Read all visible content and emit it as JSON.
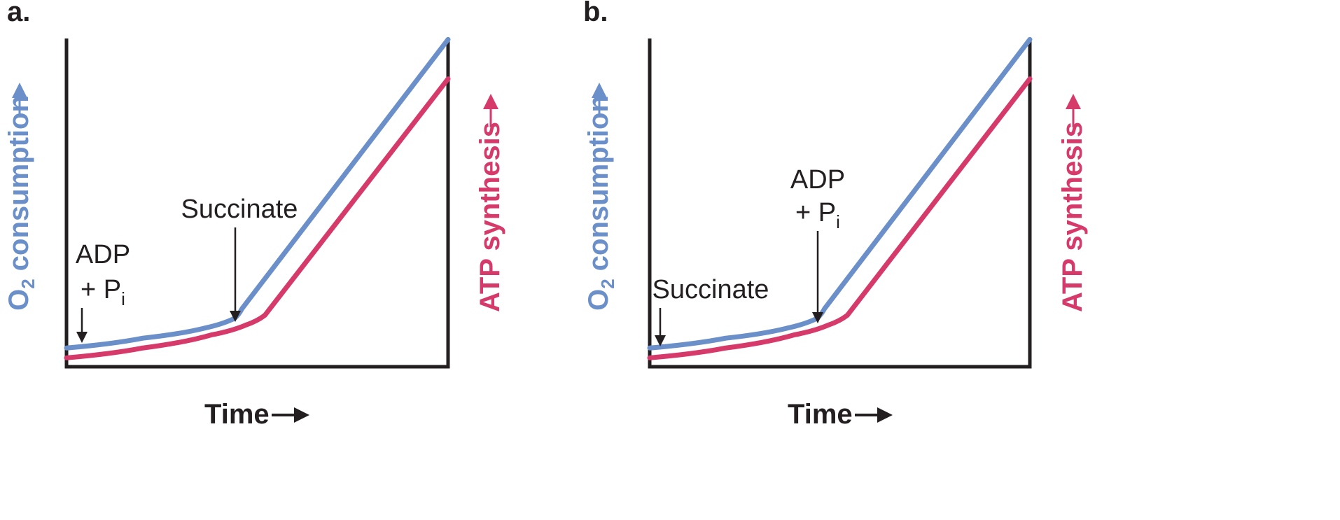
{
  "chart_data": [
    {
      "panel": "a.",
      "type": "line",
      "xlabel": "Time",
      "ylabel_left": {
        "base": "O",
        "sub": "2",
        "rest": " consumption"
      },
      "ylabel_right": "ATP synthesis",
      "grid": false,
      "xlim": [
        0,
        1
      ],
      "ylim": [
        0,
        1
      ],
      "series": [
        {
          "color": "#6a8fc9",
          "x": [
            0,
            0.2,
            0.36,
            0.44,
            0.46,
            1.0
          ],
          "y": [
            0.04,
            0.07,
            0.1,
            0.13,
            0.16,
            0.98
          ]
        },
        {
          "color": "#d63a6a",
          "x": [
            0,
            0.2,
            0.38,
            0.47,
            0.52,
            1.0
          ],
          "y": [
            0.01,
            0.04,
            0.08,
            0.11,
            0.14,
            0.86
          ]
        }
      ],
      "annotations": [
        {
          "lines": [
            {
              "text": "ADP"
            },
            {
              "text": "+ P",
              "sub": "i"
            }
          ],
          "x": 0.04
        },
        {
          "lines": [
            {
              "text": "Succinate"
            }
          ],
          "x": 0.44
        }
      ]
    },
    {
      "panel": "b.",
      "type": "line",
      "xlabel": "Time",
      "ylabel_left": {
        "base": "O",
        "sub": "2",
        "rest": " consumption"
      },
      "ylabel_right": "ATP synthesis",
      "grid": false,
      "xlim": [
        0,
        1
      ],
      "ylim": [
        0,
        1
      ],
      "series": [
        {
          "color": "#6a8fc9",
          "x": [
            0,
            0.2,
            0.36,
            0.44,
            0.46,
            1.0
          ],
          "y": [
            0.04,
            0.07,
            0.1,
            0.13,
            0.16,
            0.98
          ]
        },
        {
          "color": "#d63a6a",
          "x": [
            0,
            0.2,
            0.38,
            0.47,
            0.52,
            1.0
          ],
          "y": [
            0.01,
            0.04,
            0.08,
            0.11,
            0.14,
            0.86
          ]
        }
      ],
      "annotations": [
        {
          "lines": [
            {
              "text": "Succinate"
            }
          ],
          "x": 0.02
        },
        {
          "lines": [
            {
              "text": "ADP"
            },
            {
              "text": "+ P",
              "sub": "i"
            }
          ],
          "x": 0.44
        }
      ]
    }
  ],
  "colors": {
    "o2": "#6a8fc9",
    "atp": "#d63a6a",
    "ink": "#231f20"
  },
  "icons": {
    "x_arrow": "right-arrow-icon",
    "y_arrow": "up-arrow-icon",
    "marker": "down-arrow-icon"
  }
}
